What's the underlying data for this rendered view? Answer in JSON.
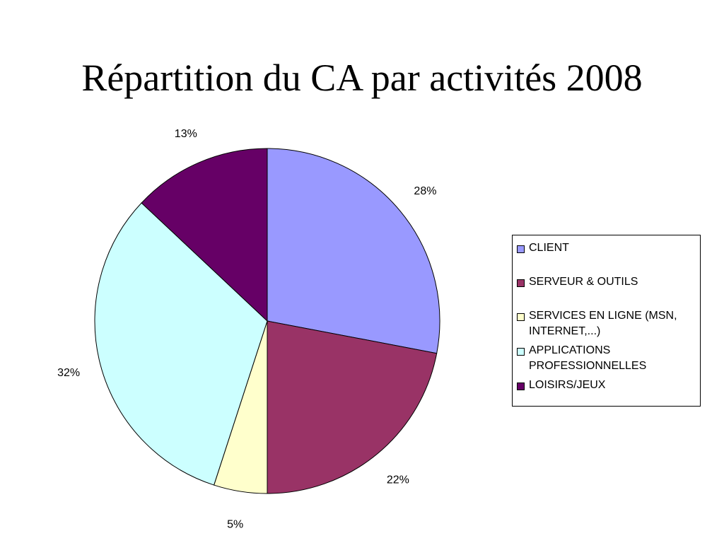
{
  "chart_data": {
    "type": "pie",
    "title": "Répartition du CA par activités 2008",
    "categories": [
      "CLIENT",
      "SERVEUR & OUTILS",
      "SERVICES EN LIGNE (MSN, INTERNET,...)",
      "APPLICATIONS PROFESSIONNELLES",
      "LOISIRS/JEUX"
    ],
    "values": [
      28,
      22,
      5,
      32,
      13
    ],
    "data_labels": [
      "28%",
      "22%",
      "5%",
      "32%",
      "13%"
    ],
    "colors": [
      "#9999ff",
      "#993366",
      "#ffffcc",
      "#ccffff",
      "#660066"
    ],
    "legend_labels": [
      [
        "CLIENT"
      ],
      [
        "SERVEUR & OUTILS"
      ],
      [
        "SERVICES EN LIGNE (MSN,",
        "INTERNET,...)"
      ],
      [
        "APPLICATIONS",
        "PROFESSIONNELLES"
      ],
      [
        "LOISIRS/JEUX"
      ]
    ],
    "legend_position": "right",
    "start_angle": "top",
    "direction": "clockwise"
  }
}
